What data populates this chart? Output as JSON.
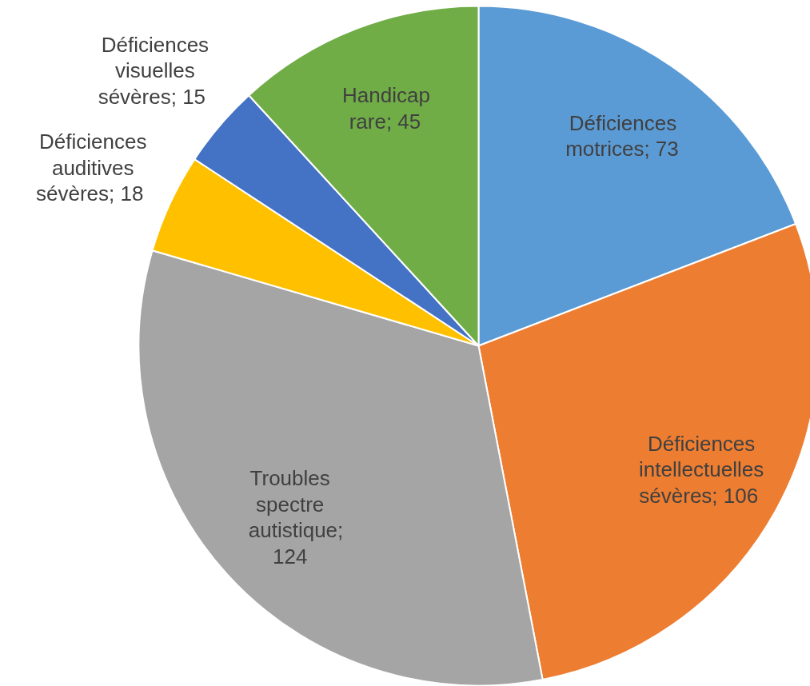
{
  "chart_data": {
    "type": "pie",
    "categories": [
      "Déficiences motrices",
      "Déficiences intellectuelles sévères",
      "Troubles spectre autistique",
      "Déficiences auditives sévères",
      "Déficiences visuelles sévères",
      "Handicap rare"
    ],
    "values": [
      73,
      106,
      124,
      18,
      15,
      45
    ],
    "value_labels": [
      "; 73",
      "; 106",
      "; 124",
      "; 18",
      "; 15",
      "; 45"
    ],
    "colors": [
      "#5b9bd5",
      "#ed7d31",
      "#a5a5a5",
      "#ffc000",
      "#4472c4",
      "#70ad47"
    ]
  }
}
